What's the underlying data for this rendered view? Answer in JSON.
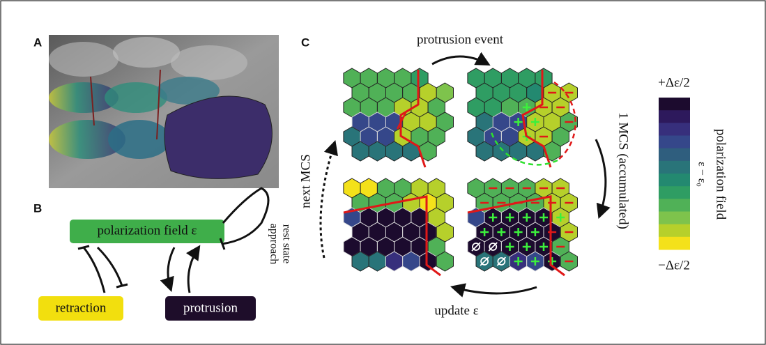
{
  "labels": [
    "A",
    "B",
    "C"
  ],
  "diagram": {
    "field": "polarization field ε",
    "retraction": "retraction",
    "protrusion": "protrusion",
    "loop_label": [
      "approach",
      "rest state"
    ]
  },
  "cycle": {
    "top": "protrusion event",
    "right": "1 MCS (accumulated)",
    "bottom": "update ε",
    "left": "next MCS"
  },
  "colorbar": {
    "max": "+Δε/2",
    "min": "−Δε/2",
    "title": "polarization field",
    "axis": "ε − ε₀"
  }
}
